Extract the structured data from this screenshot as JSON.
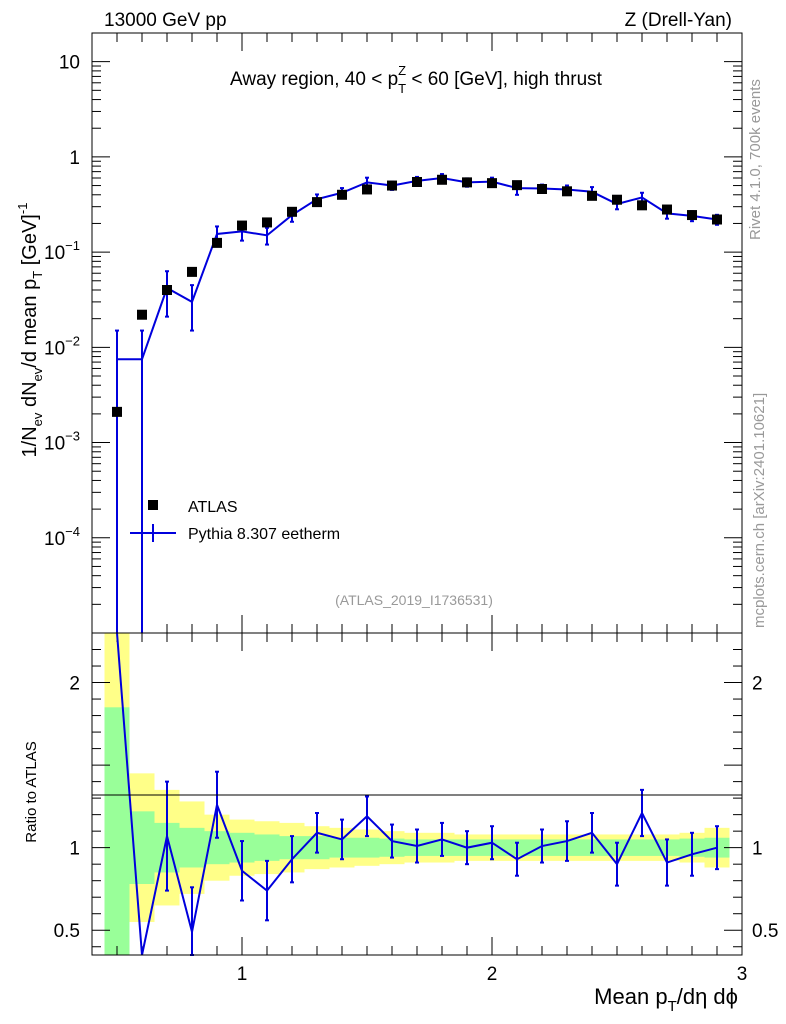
{
  "chart_data": {
    "type": "line",
    "header_left": "13000 GeV pp",
    "header_right": "Z (Drell-Yan)",
    "title_parts": {
      "pre": "Away region, 40 < p",
      "sub": "T",
      "sup": "Z",
      "post": " < 60 [GeV], high thrust"
    },
    "ylabel_parts": [
      "1/N",
      "ev",
      " dN",
      "ev",
      "/d mean p",
      "T",
      " [GeV]",
      "-1"
    ],
    "xlabel_parts": [
      "Mean p",
      "T",
      "/dη dϕ"
    ],
    "ratio_ylabel": "Ratio to ATLAS",
    "analysis_id": "(ATLAS_2019_I1736531)",
    "side_text_top": "Rivet 4.1.0,  700k events",
    "side_text_bottom": "mcplots.cern.ch [arXiv:2401.10621]",
    "xlim": [
      0.4,
      3.0
    ],
    "ylim_log": [
      1e-05,
      20
    ],
    "ratio_ylim": [
      0.35,
      2.3
    ],
    "x_ticks": [
      "1",
      "2",
      "3"
    ],
    "y_ticks_main": [
      {
        "base": "10",
        "exp": ""
      },
      {
        "base": "1",
        "exp": ""
      },
      {
        "base": "10",
        "exp": "−1"
      },
      {
        "base": "10",
        "exp": "−2"
      },
      {
        "base": "10",
        "exp": "−3"
      },
      {
        "base": "10",
        "exp": "−4"
      }
    ],
    "y_ticks_ratio": [
      "2",
      "1",
      "0.5"
    ],
    "legend": [
      "ATLAS",
      "Pythia 8.307 eetherm"
    ],
    "series": [
      {
        "name": "ATLAS",
        "x": [
          0.5,
          0.6,
          0.7,
          0.8,
          0.9,
          1.0,
          1.1,
          1.2,
          1.3,
          1.4,
          1.5,
          1.6,
          1.7,
          1.8,
          1.9,
          2.0,
          2.1,
          2.2,
          2.3,
          2.4,
          2.5,
          2.6,
          2.7,
          2.8,
          2.9
        ],
        "y": [
          0.0021,
          0.022,
          0.04,
          0.062,
          0.125,
          0.19,
          0.205,
          0.265,
          0.335,
          0.4,
          0.455,
          0.5,
          0.545,
          0.575,
          0.54,
          0.53,
          0.505,
          0.46,
          0.435,
          0.39,
          0.355,
          0.31,
          0.28,
          0.245,
          0.22
        ]
      },
      {
        "name": "Pythia 8.307 eetherm",
        "x_edges": [
          0.45,
          0.55,
          0.65,
          0.75,
          0.85,
          0.95,
          1.05,
          1.15,
          1.25,
          1.35,
          1.45,
          1.55,
          1.65,
          1.75,
          1.85,
          1.95,
          2.05,
          2.15,
          2.25,
          2.35,
          2.45,
          2.55,
          2.65,
          2.75,
          2.85,
          2.95
        ],
        "x": [
          0.5,
          0.6,
          0.7,
          0.8,
          0.9,
          1.0,
          1.1,
          1.2,
          1.3,
          1.4,
          1.5,
          1.6,
          1.7,
          1.8,
          1.9,
          2.0,
          2.1,
          2.2,
          2.3,
          2.4,
          2.5,
          2.6,
          2.7,
          2.8,
          2.9
        ],
        "y": [
          0.0075,
          0.0075,
          0.042,
          0.03,
          0.155,
          0.165,
          0.15,
          0.245,
          0.36,
          0.42,
          0.54,
          0.5,
          0.56,
          0.6,
          0.54,
          0.55,
          0.47,
          0.465,
          0.455,
          0.43,
          0.32,
          0.375,
          0.255,
          0.24,
          0.22
        ],
        "err_rel": [
          1.0,
          1.0,
          0.5,
          0.5,
          0.2,
          0.2,
          0.2,
          0.15,
          0.12,
          0.12,
          0.12,
          0.1,
          0.1,
          0.1,
          0.1,
          0.1,
          0.15,
          0.1,
          0.1,
          0.12,
          0.12,
          0.12,
          0.12,
          0.12,
          0.12
        ]
      }
    ],
    "ratio": {
      "x": [
        0.5,
        0.6,
        0.7,
        0.8,
        0.9,
        1.0,
        1.1,
        1.2,
        1.3,
        1.4,
        1.5,
        1.6,
        1.7,
        1.8,
        1.9,
        2.0,
        2.1,
        2.2,
        2.3,
        2.4,
        2.5,
        2.6,
        2.7,
        2.8,
        2.9
      ],
      "mc": [
        3.5,
        0.34,
        1.07,
        0.49,
        1.26,
        0.86,
        0.74,
        0.93,
        1.09,
        1.05,
        1.19,
        1.04,
        1.01,
        1.05,
        1.0,
        1.03,
        0.93,
        1.01,
        1.04,
        1.09,
        0.9,
        1.21,
        0.91,
        0.96,
        1.0
      ],
      "mc_err": [
        3.5,
        0.3,
        0.33,
        0.27,
        0.2,
        0.18,
        0.18,
        0.14,
        0.12,
        0.12,
        0.12,
        0.1,
        0.1,
        0.1,
        0.1,
        0.1,
        0.1,
        0.1,
        0.12,
        0.12,
        0.13,
        0.14,
        0.14,
        0.13,
        0.13
      ],
      "band_inner": [
        0.85,
        0.22,
        0.15,
        0.12,
        0.1,
        0.09,
        0.08,
        0.07,
        0.07,
        0.06,
        0.06,
        0.055,
        0.05,
        0.05,
        0.05,
        0.05,
        0.05,
        0.05,
        0.05,
        0.05,
        0.05,
        0.05,
        0.05,
        0.055,
        0.06
      ],
      "band_outer": [
        1.3,
        0.45,
        0.35,
        0.28,
        0.2,
        0.17,
        0.16,
        0.15,
        0.13,
        0.12,
        0.11,
        0.1,
        0.09,
        0.09,
        0.08,
        0.08,
        0.08,
        0.08,
        0.08,
        0.08,
        0.08,
        0.08,
        0.08,
        0.09,
        0.12
      ]
    },
    "colors": {
      "mc": "#0000dd",
      "data": "#000000",
      "band_inner": "#99ff99",
      "band_outer": "#ffff88",
      "side_text": "#999999"
    }
  }
}
